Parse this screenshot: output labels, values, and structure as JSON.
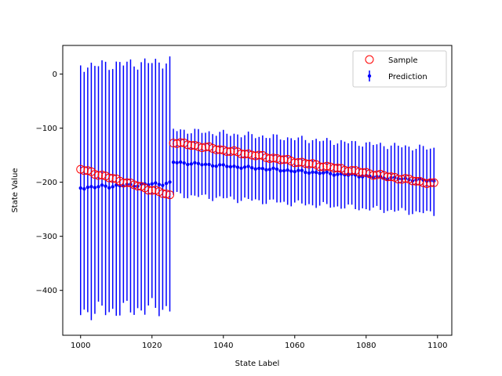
{
  "chart_data": {
    "type": "scatter",
    "title": "",
    "xlabel": "State Label",
    "ylabel": "State Value",
    "xlim": [
      995,
      1104
    ],
    "ylim": [
      -483,
      53
    ],
    "xticks": [
      1000,
      1020,
      1040,
      1060,
      1080,
      1100
    ],
    "yticks": [
      0,
      -100,
      -200,
      -300,
      -400
    ],
    "grid": false,
    "legend_position": "top-right",
    "series": [
      {
        "name": "Sample",
        "kind": "scatter",
        "marker": "open-circle",
        "color": "#ff0000",
        "segments": [
          {
            "x_start": 1000,
            "x_end": 1025,
            "y_start": -176,
            "y_end": -224
          },
          {
            "x_start": 1026,
            "x_end": 1099,
            "y_start": -126,
            "y_end": -203
          }
        ]
      },
      {
        "name": "Prediction",
        "kind": "errorbar",
        "marker": "filled-dot",
        "color": "#0000ff",
        "segments": [
          {
            "x_start": 1000,
            "x_end": 1025,
            "y_start": -210,
            "y_end": -202,
            "err_lower": 230,
            "err_upper": 225
          },
          {
            "x_start": 1026,
            "x_end": 1099,
            "y_start": -163,
            "y_end": -198,
            "err_lower": 60,
            "err_upper": 60
          }
        ]
      }
    ]
  }
}
